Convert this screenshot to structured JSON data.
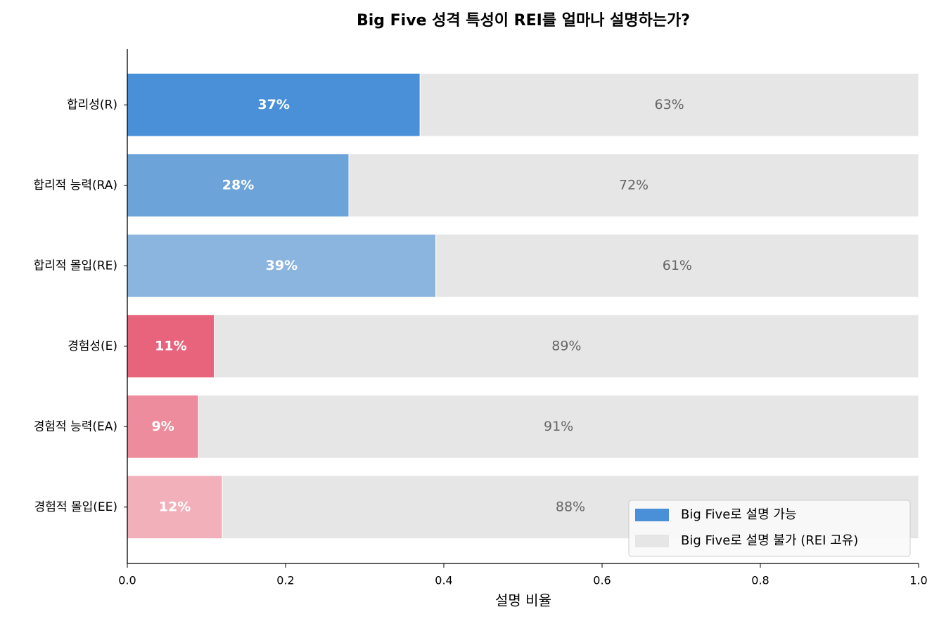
{
  "chart_data": {
    "type": "stacked_barh",
    "title": "Big Five 성격 특성이 REI를 얼마나 설명하는가?",
    "x_label": "설명 비율",
    "categories": [
      "합리성(R)",
      "합리적 능력(RA)",
      "합리적 몰입(RE)",
      "경험성(E)",
      "경험적 능력(EA)",
      "경험적 몰입(EE)"
    ],
    "series": [
      {
        "name": "Big Five로 설명 가능",
        "color": "#4a90d9",
        "colors": [
          "#4a90d9",
          "#6ca3d8",
          "#8bb5df",
          "#e8647c",
          "#ed8c9c",
          "#f1b0ba"
        ],
        "values": [
          0.37,
          0.28,
          0.39,
          0.11,
          0.09,
          0.12
        ],
        "value_labels": [
          "37%",
          "28%",
          "39%",
          "11%",
          "9%",
          "12%"
        ]
      },
      {
        "name": "Big Five로 설명 불가 (REI 고유)",
        "color": "#e6e6e6",
        "values": [
          0.63,
          0.72,
          0.61,
          0.89,
          0.91,
          0.88
        ],
        "value_labels": [
          "63%",
          "72%",
          "61%",
          "89%",
          "91%",
          "88%"
        ]
      }
    ],
    "xlim": [
      0,
      1
    ],
    "xticks": [
      {
        "value": 0,
        "label": "0.0"
      },
      0.2,
      0.4,
      0.6,
      0.8,
      {
        "value": 1,
        "label": "1.0"
      }
    ],
    "legend_loc": "lower right"
  }
}
